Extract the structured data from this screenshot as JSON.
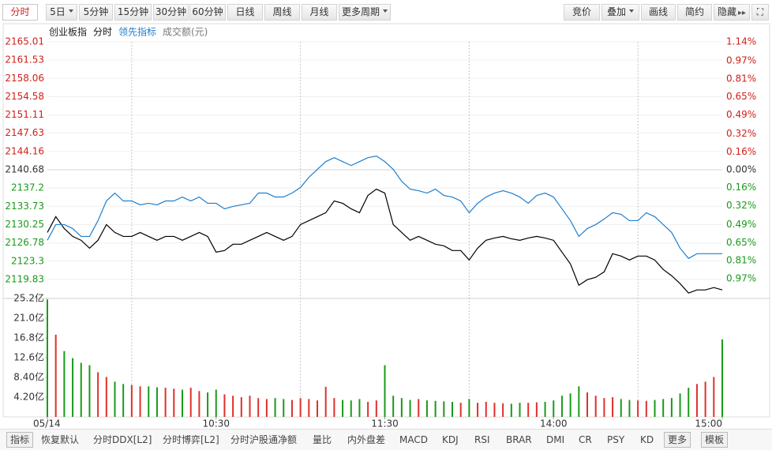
{
  "toolbar": {
    "periods": [
      "分时",
      "5日",
      "5分钟",
      "15分钟",
      "30分钟",
      "60分钟",
      "日线",
      "周线",
      "月线",
      "更多周期"
    ],
    "tools": [
      "竞价",
      "叠加",
      "画线",
      "简约",
      "隐藏"
    ]
  },
  "chart_data": {
    "type": "line",
    "title": "创业板指",
    "grid": true,
    "x": [
      0,
      3,
      6,
      9,
      12,
      15,
      18,
      21,
      24,
      27,
      30,
      33,
      36,
      39,
      42,
      45,
      48,
      51,
      54,
      57,
      60,
      63,
      66,
      69,
      72,
      75,
      78,
      81,
      84,
      87,
      90,
      93,
      96,
      99,
      102,
      105,
      108,
      111,
      114,
      117,
      120,
      123,
      126,
      129,
      132,
      135,
      138,
      141,
      144,
      147,
      150,
      153,
      156,
      159,
      162,
      165,
      168,
      171,
      174,
      177,
      180,
      183,
      186,
      189,
      192,
      195,
      198,
      201,
      204,
      207,
      210,
      213,
      216,
      219,
      222,
      225,
      228,
      231,
      234,
      237,
      240
    ],
    "xlim": [
      0,
      240
    ],
    "xticks": [
      {
        "value": 0,
        "label": "05/14"
      },
      {
        "value": 60,
        "label": "10:30"
      },
      {
        "value": 120,
        "label": "11:30"
      },
      {
        "value": 180,
        "label": "14:00"
      },
      {
        "value": 240,
        "label": "15:00"
      }
    ],
    "ylim": [
      2116.36,
      2165.01
    ],
    "yticks": [
      2165.01,
      2161.53,
      2158.06,
      2154.58,
      2151.11,
      2147.63,
      2144.16,
      2140.68,
      2137.2,
      2133.73,
      2130.25,
      2126.78,
      2123.3,
      2119.83
    ],
    "y2lim": [
      -1.14,
      1.14
    ],
    "y2ticks": [
      {
        "value": 1.14,
        "label": "1.14%"
      },
      {
        "value": 0.97,
        "label": "0.97%"
      },
      {
        "value": 0.81,
        "label": "0.81%"
      },
      {
        "value": 0.65,
        "label": "0.65%"
      },
      {
        "value": 0.49,
        "label": "0.49%"
      },
      {
        "value": 0.32,
        "label": "0.32%"
      },
      {
        "value": 0.16,
        "label": "0.16%"
      },
      {
        "value": 0,
        "label": "0.00%"
      },
      {
        "value": -0.16,
        "label": "0.16%"
      },
      {
        "value": -0.32,
        "label": "0.32%"
      },
      {
        "value": -0.49,
        "label": "0.49%"
      },
      {
        "value": -0.65,
        "label": "0.65%"
      },
      {
        "value": -0.81,
        "label": "0.81%"
      },
      {
        "value": -0.97,
        "label": "0.97%"
      }
    ],
    "series": [
      {
        "name": "分时",
        "color": "#000000",
        "values": [
          2128.76,
          2131.76,
          2129.51,
          2128.01,
          2127.27,
          2125.77,
          2127.27,
          2130.26,
          2128.76,
          2128.01,
          2128.01,
          2128.76,
          2128.01,
          2127.27,
          2128.01,
          2128.01,
          2127.27,
          2128.01,
          2128.76,
          2128.01,
          2125.02,
          2125.32,
          2126.52,
          2126.52,
          2127.27,
          2128.01,
          2128.76,
          2128.01,
          2127.27,
          2128.01,
          2130.26,
          2131.01,
          2131.76,
          2132.51,
          2134.75,
          2134.31,
          2133.26,
          2132.51,
          2135.8,
          2137.0,
          2136.25,
          2130.26,
          2128.76,
          2127.27,
          2128.01,
          2127.27,
          2126.52,
          2126.22,
          2125.32,
          2125.32,
          2123.52,
          2125.77,
          2127.27,
          2127.71,
          2128.01,
          2127.56,
          2127.27,
          2127.71,
          2128.01,
          2127.71,
          2127.27,
          2125.02,
          2122.77,
          2118.73,
          2119.78,
          2120.23,
          2121.27,
          2124.72,
          2124.27,
          2123.52,
          2124.27,
          2124.27,
          2123.52,
          2121.72,
          2120.53,
          2119.03,
          2117.23,
          2117.83,
          2117.83,
          2118.28,
          2117.83
        ]
      },
      {
        "name": "领先指标",
        "color": "#1f7fcf",
        "values": [
          2127.27,
          2130.26,
          2130.26,
          2129.51,
          2128.01,
          2128.01,
          2131.01,
          2134.75,
          2136.25,
          2134.75,
          2134.75,
          2134.01,
          2134.31,
          2134.01,
          2134.75,
          2134.75,
          2135.5,
          2134.75,
          2135.5,
          2134.31,
          2134.31,
          2133.26,
          2133.71,
          2134.01,
          2134.31,
          2136.25,
          2136.25,
          2135.5,
          2135.5,
          2136.25,
          2137.3,
          2139.25,
          2140.75,
          2142.24,
          2142.99,
          2142.24,
          2141.49,
          2142.24,
          2142.99,
          2143.29,
          2142.24,
          2140.75,
          2138.5,
          2137.0,
          2136.7,
          2136.25,
          2137.0,
          2135.8,
          2135.5,
          2134.75,
          2132.51,
          2134.31,
          2135.5,
          2136.25,
          2136.7,
          2136.25,
          2135.5,
          2134.31,
          2135.8,
          2136.25,
          2135.5,
          2133.26,
          2131.01,
          2128.01,
          2129.51,
          2130.26,
          2131.31,
          2132.51,
          2132.21,
          2131.01,
          2131.01,
          2132.51,
          2131.76,
          2130.26,
          2128.76,
          2125.77,
          2123.82,
          2124.72,
          2124.72,
          2124.72,
          2124.72
        ]
      }
    ],
    "volume": {
      "name": "成交额(元)",
      "up_color": "#e0302a",
      "down_color": "#1a9a1a",
      "ylim": [
        0,
        25.2
      ],
      "yticks": [
        {
          "value": 25.2,
          "label": "25.2亿"
        },
        {
          "value": 21.0,
          "label": "21.0亿"
        },
        {
          "value": 16.8,
          "label": "16.8亿"
        },
        {
          "value": 12.6,
          "label": "12.6亿"
        },
        {
          "value": 8.4,
          "label": "8.40亿"
        },
        {
          "value": 4.2,
          "label": "4.20亿"
        }
      ],
      "values": [
        25.0,
        17.5,
        14.0,
        12.5,
        11.5,
        11.0,
        9.5,
        8.5,
        7.5,
        7.0,
        6.8,
        6.5,
        6.5,
        6.3,
        6.2,
        6.0,
        5.8,
        6.2,
        5.5,
        5.2,
        5.8,
        4.8,
        4.5,
        4.2,
        4.5,
        4.0,
        3.8,
        4.0,
        3.8,
        3.6,
        4.0,
        3.8,
        3.5,
        6.4,
        4.0,
        3.6,
        3.5,
        3.8,
        3.2,
        3.5,
        11.0,
        4.5,
        4.0,
        3.6,
        3.8,
        3.5,
        3.4,
        3.3,
        3.2,
        3.0,
        3.8,
        3.0,
        3.2,
        3.0,
        2.9,
        2.8,
        3.0,
        3.0,
        3.1,
        3.2,
        3.5,
        4.5,
        5.0,
        6.5,
        5.2,
        4.5,
        4.0,
        4.2,
        3.8,
        3.6,
        3.5,
        3.4,
        3.6,
        3.8,
        4.0,
        5.0,
        6.2,
        7.0,
        7.5,
        8.5,
        16.5
      ]
    }
  },
  "bottom_bar": {
    "items": [
      "指标",
      "恢复默认",
      "分时DDX[L2]",
      "分时博弈[L2]",
      "分时沪股通净额",
      "量比",
      "内外盘差",
      "MACD",
      "KDJ",
      "RSI",
      "BRAR",
      "DMI",
      "CR",
      "PSY",
      "KD",
      "更多",
      "模板"
    ]
  }
}
